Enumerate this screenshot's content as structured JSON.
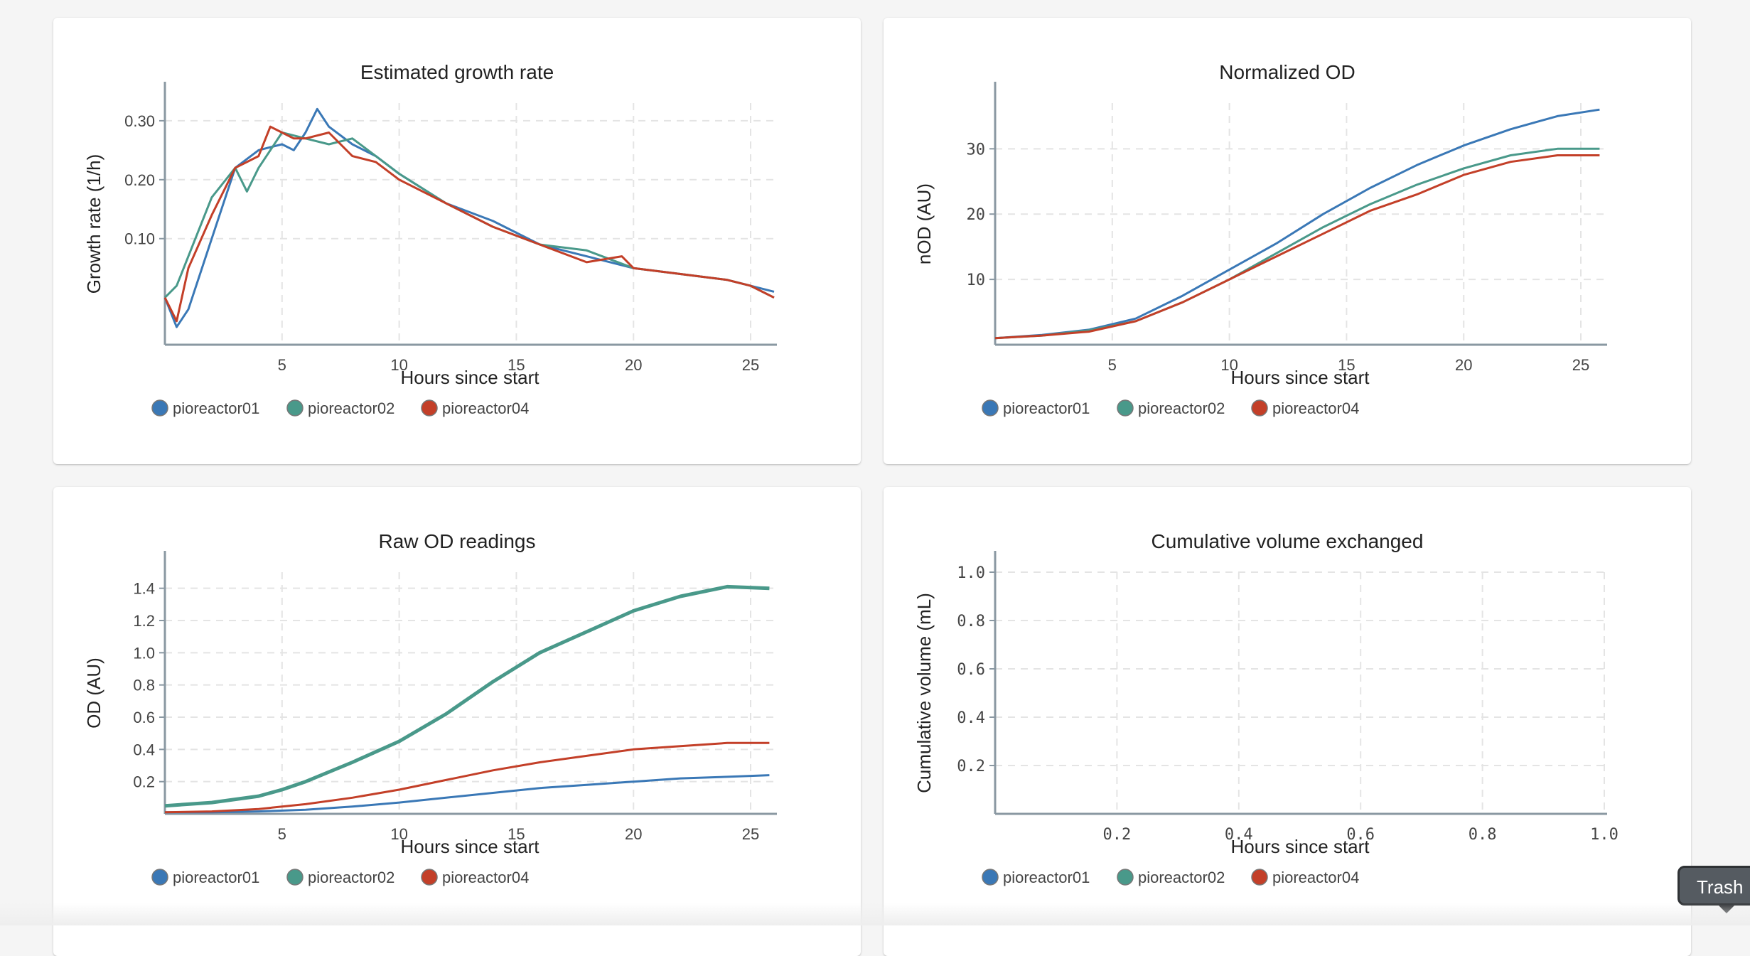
{
  "colors": {
    "pioreactor01": "#3a78b6",
    "pioreactor02": "#49998a",
    "pioreactor04": "#c33f28",
    "axis": "#8a98a2",
    "grid": "#e4e4e4"
  },
  "legend": [
    "pioreactor01",
    "pioreactor02",
    "pioreactor04"
  ],
  "tooltip": {
    "label": "Trash"
  },
  "charts": {
    "growth": {
      "title": "Estimated growth rate",
      "xlabel": "Hours since start",
      "ylabel": "Growth rate (1/h)",
      "x_ticks": [
        "5",
        "10",
        "15",
        "20",
        "25"
      ],
      "y_ticks": [
        "0.10",
        "0.20",
        "0.30"
      ]
    },
    "nod": {
      "title": "Normalized OD",
      "xlabel": "Hours since start",
      "ylabel": "nOD (AU)",
      "x_ticks": [
        "5",
        "10",
        "15",
        "20",
        "25"
      ],
      "y_ticks": [
        "10",
        "20",
        "30"
      ]
    },
    "raw": {
      "title": "Raw OD readings",
      "xlabel": "Hours since start",
      "ylabel": "OD (AU)",
      "x_ticks": [
        "5",
        "10",
        "15",
        "20",
        "25"
      ],
      "y_ticks": [
        "0.2",
        "0.4",
        "0.6",
        "0.8",
        "1.0",
        "1.2",
        "1.4"
      ]
    },
    "vol": {
      "title": "Cumulative volume exchanged",
      "xlabel": "Hours since start",
      "ylabel": "Cumulative volume (mL)",
      "x_ticks": [
        "0.2",
        "0.4",
        "0.6",
        "0.8",
        "1.0"
      ],
      "y_ticks": [
        "0.2",
        "0.4",
        "0.6",
        "0.8",
        "1.0"
      ]
    }
  },
  "chart_data": [
    {
      "type": "line",
      "title": "Estimated growth rate",
      "xlabel": "Hours since start",
      "ylabel": "Growth rate (1/h)",
      "xlim": [
        0,
        26
      ],
      "ylim": [
        -0.08,
        0.33
      ],
      "grid": true,
      "legend": "bottom",
      "series": [
        {
          "name": "pioreactor01",
          "x": [
            0,
            0.5,
            1,
            2,
            3,
            4,
            5,
            5.5,
            6,
            6.5,
            7,
            8,
            9,
            10,
            12,
            14,
            16,
            18,
            20,
            22,
            24,
            25,
            26
          ],
          "y": [
            0,
            -0.05,
            -0.02,
            0.1,
            0.22,
            0.25,
            0.26,
            0.25,
            0.28,
            0.32,
            0.29,
            0.26,
            0.24,
            0.21,
            0.16,
            0.13,
            0.09,
            0.07,
            0.05,
            0.04,
            0.03,
            0.02,
            0.01
          ]
        },
        {
          "name": "pioreactor02",
          "x": [
            0,
            0.5,
            1,
            2,
            3,
            3.5,
            4,
            5,
            6,
            7,
            8,
            9,
            10,
            12,
            14,
            16,
            18,
            20,
            22,
            24,
            25,
            26
          ],
          "y": [
            0,
            0.02,
            0.07,
            0.17,
            0.22,
            0.18,
            0.22,
            0.28,
            0.27,
            0.26,
            0.27,
            0.24,
            0.21,
            0.16,
            0.12,
            0.09,
            0.08,
            0.05,
            0.04,
            0.03,
            0.02,
            0.0
          ]
        },
        {
          "name": "pioreactor04",
          "x": [
            0,
            0.5,
            1,
            2,
            3,
            4,
            4.5,
            5,
            5.5,
            6,
            7,
            8,
            9,
            10,
            12,
            14,
            16,
            18,
            19.5,
            20,
            22,
            24,
            25,
            26
          ],
          "y": [
            0,
            -0.04,
            0.05,
            0.14,
            0.22,
            0.24,
            0.29,
            0.28,
            0.27,
            0.27,
            0.28,
            0.24,
            0.23,
            0.2,
            0.16,
            0.12,
            0.09,
            0.06,
            0.07,
            0.05,
            0.04,
            0.03,
            0.02,
            0.0
          ]
        }
      ]
    },
    {
      "type": "line",
      "title": "Normalized OD",
      "xlabel": "Hours since start",
      "ylabel": "nOD (AU)",
      "xlim": [
        0,
        26
      ],
      "ylim": [
        0,
        37
      ],
      "grid": true,
      "legend": "bottom",
      "series": [
        {
          "name": "pioreactor01",
          "x": [
            0,
            2,
            4,
            6,
            8,
            10,
            12,
            14,
            16,
            18,
            20,
            22,
            24,
            25.8
          ],
          "y": [
            1,
            1.5,
            2.3,
            4,
            7.5,
            11.5,
            15.5,
            20,
            24,
            27.5,
            30.5,
            33,
            35,
            36
          ]
        },
        {
          "name": "pioreactor02",
          "x": [
            0,
            2,
            4,
            6,
            8,
            10,
            12,
            14,
            16,
            18,
            20,
            22,
            24,
            25.8
          ],
          "y": [
            1,
            1.4,
            2.2,
            3.6,
            6.5,
            10,
            14,
            18,
            21.5,
            24.5,
            27,
            29,
            30,
            30
          ]
        },
        {
          "name": "pioreactor04",
          "x": [
            0,
            2,
            4,
            6,
            8,
            10,
            12,
            14,
            16,
            18,
            20,
            22,
            24,
            25.8
          ],
          "y": [
            1,
            1.4,
            2.0,
            3.6,
            6.5,
            10,
            13.5,
            17,
            20.5,
            23,
            26,
            28,
            29,
            29
          ]
        }
      ]
    },
    {
      "type": "line",
      "title": "Raw OD readings",
      "xlabel": "Hours since start",
      "ylabel": "OD (AU)",
      "xlim": [
        0,
        26
      ],
      "ylim": [
        0,
        1.5
      ],
      "grid": true,
      "legend": "bottom",
      "series": [
        {
          "name": "pioreactor01",
          "x": [
            0,
            2,
            4,
            6,
            8,
            10,
            12,
            14,
            16,
            18,
            20,
            22,
            24,
            25.8
          ],
          "y": [
            0.01,
            0.01,
            0.015,
            0.025,
            0.045,
            0.07,
            0.1,
            0.13,
            0.16,
            0.18,
            0.2,
            0.22,
            0.23,
            0.24
          ]
        },
        {
          "name": "pioreactor02",
          "x": [
            0,
            2,
            4,
            5,
            6,
            8,
            10,
            12,
            14,
            16,
            18,
            20,
            22,
            24,
            25.8
          ],
          "y": [
            0.05,
            0.07,
            0.11,
            0.15,
            0.2,
            0.32,
            0.45,
            0.62,
            0.82,
            1.0,
            1.13,
            1.26,
            1.35,
            1.41,
            1.4
          ]
        },
        {
          "name": "pioreactor04",
          "x": [
            0,
            2,
            4,
            6,
            8,
            10,
            12,
            14,
            16,
            18,
            20,
            22,
            24,
            25.8
          ],
          "y": [
            0.01,
            0.015,
            0.03,
            0.06,
            0.1,
            0.15,
            0.21,
            0.27,
            0.32,
            0.36,
            0.4,
            0.42,
            0.44,
            0.44
          ]
        }
      ]
    },
    {
      "type": "line",
      "title": "Cumulative volume exchanged",
      "xlabel": "Hours since start",
      "ylabel": "Cumulative volume (mL)",
      "xlim": [
        0,
        1.0
      ],
      "ylim": [
        0,
        1.0
      ],
      "grid": true,
      "legend": "bottom",
      "series": [
        {
          "name": "pioreactor01",
          "x": [],
          "y": []
        },
        {
          "name": "pioreactor02",
          "x": [],
          "y": []
        },
        {
          "name": "pioreactor04",
          "x": [],
          "y": []
        }
      ]
    }
  ]
}
